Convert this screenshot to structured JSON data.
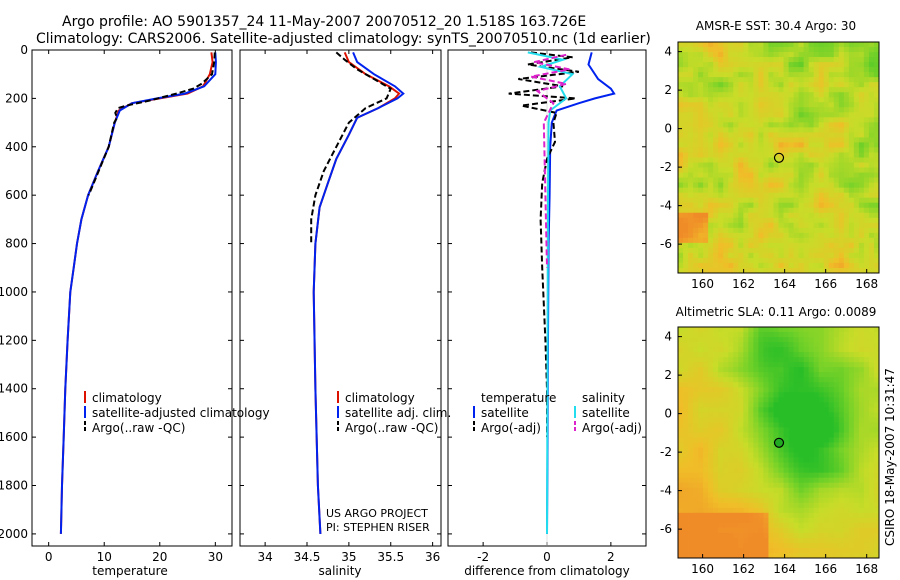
{
  "header": {
    "title_line1": "Argo profile: AO 5901357_24 11-May-2007 20070512_20 1.518S 163.726E",
    "title_line2": "Climatology: CARS2006. Satellite-adjusted climatology: synTS_20070510.nc (1d earlier)"
  },
  "side_label": "CSIRO 18-May-2007 10:31:47",
  "colors": {
    "red": "#dd1100",
    "blue": "#0022ee",
    "black": "#000000",
    "cyan": "#22ddee",
    "magenta": "#dd22cc"
  },
  "chart_data": [
    {
      "type": "line",
      "name": "temperature",
      "xlabel": "temperature",
      "xlim": [
        -3,
        33
      ],
      "ylim": [
        2050,
        0
      ],
      "xticks": [
        "0",
        "10",
        "20",
        "30"
      ],
      "xtick_values": [
        0,
        10,
        20,
        30
      ],
      "yticks": [
        "0",
        "200",
        "400",
        "600",
        "800",
        "1000",
        "1200",
        "1400",
        "1600",
        "1800",
        "2000"
      ],
      "ytick_values": [
        0,
        200,
        400,
        600,
        800,
        1000,
        1200,
        1400,
        1600,
        1800,
        2000
      ],
      "legend": [
        "climatology",
        "satellite-adjusted climatology",
        "Argo(..raw -QC)"
      ],
      "series": [
        {
          "name": "climatology",
          "color": "red",
          "dash": false,
          "x": [
            29.3,
            29.5,
            29.0,
            27.8,
            25.0,
            20.0,
            15.0,
            12.6,
            11.9,
            10.8,
            8.9,
            7.1,
            5.9,
            5.1,
            4.5,
            3.9,
            3.4,
            3.0,
            2.7,
            2.4,
            2.2
          ],
          "y": [
            10,
            50,
            100,
            150,
            180,
            200,
            220,
            250,
            300,
            400,
            500,
            600,
            700,
            800,
            900,
            1000,
            1200,
            1400,
            1600,
            1800,
            2000
          ]
        },
        {
          "name": "satellite-adjusted climatology",
          "color": "blue",
          "dash": false,
          "x": [
            30.0,
            30.1,
            30.0,
            28.0,
            24.5,
            19.5,
            15.0,
            12.8,
            11.9,
            10.8,
            8.9,
            7.1,
            5.9,
            5.1,
            4.5,
            3.9,
            3.4,
            3.0,
            2.7,
            2.4,
            2.2
          ],
          "y": [
            10,
            50,
            100,
            150,
            180,
            200,
            220,
            250,
            300,
            400,
            500,
            600,
            700,
            800,
            900,
            1000,
            1200,
            1400,
            1600,
            1800,
            2000
          ]
        },
        {
          "name": "Argo(..raw -QC)",
          "color": "black",
          "dash": true,
          "x": [
            29.9,
            29.8,
            29.4,
            27.5,
            26.0,
            23.0,
            18.0,
            14.0,
            12.5,
            12.0,
            12.3,
            11.8,
            10.8,
            9.0,
            7.2
          ],
          "y": [
            10,
            50,
            100,
            140,
            160,
            180,
            210,
            230,
            240,
            260,
            280,
            300,
            400,
            500,
            600
          ]
        }
      ]
    },
    {
      "type": "line",
      "name": "salinity",
      "xlabel": "salinity",
      "xlim": [
        33.7,
        36.1
      ],
      "ylim": [
        2050,
        0
      ],
      "xticks": [
        "34",
        "34.5",
        "35",
        "35.5",
        "36"
      ],
      "xtick_values": [
        34,
        34.5,
        35,
        35.5,
        36
      ],
      "legend": [
        "climatology",
        "satellite adj. clim.",
        "Argo(..raw -QC)"
      ],
      "series": [
        {
          "name": "climatology",
          "color": "red",
          "dash": false,
          "x": [
            34.95,
            35.0,
            35.2,
            35.48,
            35.6,
            35.55,
            35.35,
            35.1,
            35.0,
            34.85,
            34.75,
            34.65,
            34.6,
            34.58,
            34.6,
            34.63,
            34.66
          ],
          "y": [
            10,
            50,
            100,
            150,
            180,
            200,
            240,
            280,
            350,
            450,
            550,
            650,
            800,
            1000,
            1400,
            1800,
            2000
          ]
        },
        {
          "name": "satellite adj. clim.",
          "color": "blue",
          "dash": false,
          "x": [
            35.05,
            35.1,
            35.3,
            35.55,
            35.65,
            35.58,
            35.35,
            35.1,
            35.0,
            34.85,
            34.75,
            34.65,
            34.6,
            34.58,
            34.6,
            34.63,
            34.66
          ],
          "y": [
            10,
            50,
            100,
            150,
            180,
            200,
            240,
            280,
            350,
            450,
            550,
            650,
            800,
            1000,
            1400,
            1800,
            2000
          ]
        },
        {
          "name": "Argo(..raw -QC)",
          "color": "black",
          "dash": true,
          "x": [
            34.85,
            34.95,
            35.1,
            35.3,
            35.5,
            35.45,
            35.2,
            35.0,
            34.85,
            34.7,
            34.6,
            34.55,
            34.55
          ],
          "y": [
            10,
            40,
            80,
            120,
            160,
            200,
            240,
            300,
            400,
            500,
            600,
            700,
            800
          ]
        }
      ]
    },
    {
      "type": "line",
      "name": "difference",
      "xlabel": "difference from climatology",
      "xlim": [
        -3.1,
        3.1
      ],
      "ylim": [
        2050,
        0
      ],
      "xticks": [
        "-2",
        "0",
        "2"
      ],
      "xtick_values": [
        -2,
        0,
        2
      ],
      "legend_headers": [
        "temperature",
        "salinity"
      ],
      "legend": [
        "satellite",
        "Argo(-adj)",
        "satellite",
        "Argo(-adj)"
      ],
      "series": [
        {
          "name": "temperature satellite",
          "color": "blue",
          "dash": false,
          "x": [
            1.4,
            1.3,
            1.6,
            2.0,
            2.1,
            1.5,
            1.0,
            0.3,
            0.15,
            0.1,
            0.08,
            0.05,
            0.03,
            0.02,
            0.0
          ],
          "y": [
            10,
            60,
            120,
            160,
            180,
            200,
            220,
            250,
            300,
            400,
            600,
            800,
            1200,
            1600,
            2000
          ]
        },
        {
          "name": "temperature Argo(-adj)",
          "color": "black",
          "dash": true,
          "x": [
            -0.5,
            0.8,
            -0.6,
            1.0,
            -0.9,
            0.5,
            -1.2,
            0.9,
            -0.8,
            0.3,
            0.2,
            0.25,
            0.0,
            -0.15,
            -0.2,
            -0.15,
            -0.05,
            0.0,
            0.0
          ],
          "y": [
            10,
            30,
            60,
            90,
            120,
            150,
            180,
            200,
            230,
            260,
            300,
            380,
            450,
            550,
            700,
            900,
            1200,
            1400,
            1600
          ]
        },
        {
          "name": "salinity satellite",
          "color": "cyan",
          "dash": false,
          "x": [
            -0.6,
            0.5,
            -0.2,
            0.8,
            0.4,
            0.6,
            0.1,
            0.05,
            0.03,
            0.02,
            0.0
          ],
          "y": [
            10,
            40,
            70,
            100,
            150,
            200,
            250,
            300,
            600,
            1200,
            2000
          ]
        },
        {
          "name": "salinity Argo(-adj)",
          "color": "magenta",
          "dash": true,
          "x": [
            0.6,
            -0.4,
            0.7,
            -0.5,
            0.6,
            -0.3,
            0.2,
            -0.1,
            -0.05,
            0.0
          ],
          "y": [
            20,
            50,
            80,
            110,
            140,
            170,
            220,
            300,
            600,
            900
          ]
        }
      ]
    },
    {
      "type": "heatmap",
      "name": "sst-map",
      "title": "AMSR-E SST: 30.4 Argo: 30",
      "xlim": [
        158.8,
        168.6
      ],
      "ylim": [
        -7.5,
        4.5
      ],
      "xticks": [
        "160",
        "162",
        "164",
        "166",
        "168"
      ],
      "xtick_values": [
        160,
        162,
        164,
        166,
        168
      ],
      "yticks": [
        "4",
        "2",
        "0",
        "-2",
        "-4",
        "-6"
      ],
      "ytick_values": [
        4,
        2,
        0,
        -2,
        -4,
        -6
      ],
      "marker": {
        "lon": 163.726,
        "lat": -1.518
      }
    },
    {
      "type": "heatmap",
      "name": "sla-map",
      "title": "Altimetric SLA: 0.11 Argo: 0.0089",
      "xlim": [
        158.8,
        168.6
      ],
      "ylim": [
        -7.5,
        4.5
      ],
      "xticks": [
        "160",
        "162",
        "164",
        "166",
        "168"
      ],
      "xtick_values": [
        160,
        162,
        164,
        166,
        168
      ],
      "yticks": [
        "4",
        "2",
        "0",
        "-2",
        "-4",
        "-6"
      ],
      "ytick_values": [
        4,
        2,
        0,
        -2,
        -4,
        -6
      ],
      "marker": {
        "lon": 163.726,
        "lat": -1.518
      }
    }
  ],
  "annotation": {
    "line1": "US ARGO PROJECT",
    "line2": "PI: STEPHEN RISER"
  }
}
